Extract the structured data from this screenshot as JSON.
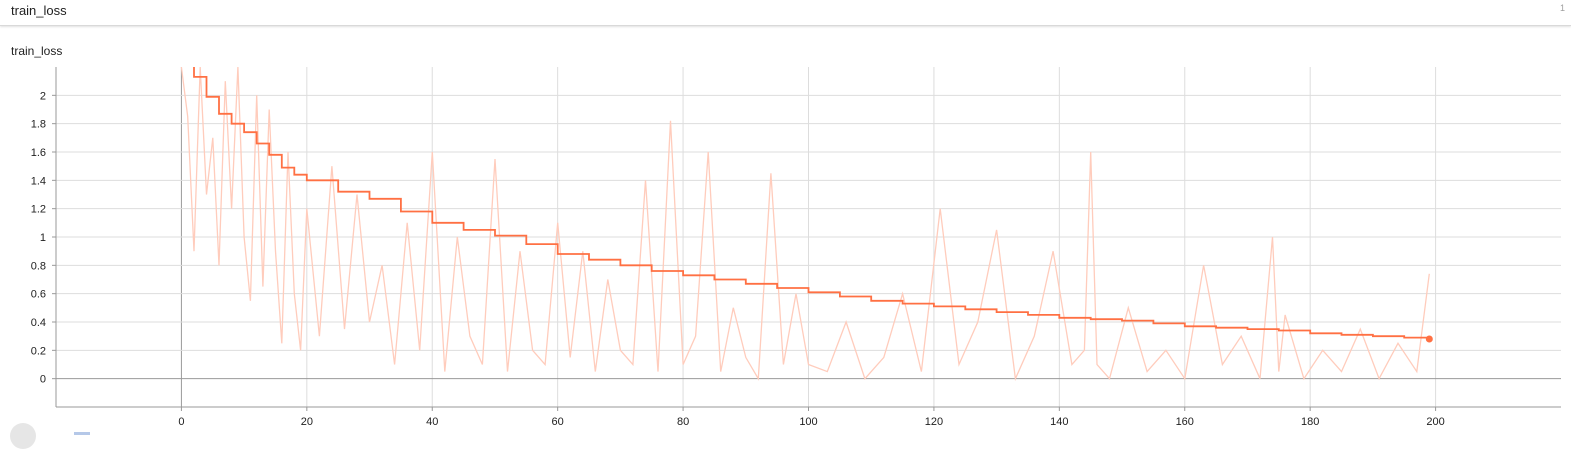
{
  "card": {
    "title": "train_loss",
    "count": "1"
  },
  "chart_data": {
    "type": "line",
    "title": "train_loss",
    "xlabel": "",
    "ylabel": "",
    "xlim": [
      -20,
      220
    ],
    "ylim": [
      -0.2,
      2.2
    ],
    "x_ticks": [
      0,
      20,
      40,
      60,
      80,
      100,
      120,
      140,
      160,
      180,
      200
    ],
    "y_ticks": [
      0,
      0.2,
      0.4,
      0.6,
      0.8,
      1,
      1.2,
      1.4,
      1.6,
      1.8,
      2
    ],
    "grid": true,
    "colors": {
      "smoothed": "#ff7043",
      "raw": "#ffccbc",
      "grid": "#dddddd",
      "axis": "#999999"
    },
    "series": [
      {
        "role": "smoothed",
        "x": [
          0,
          2,
          4,
          6,
          8,
          10,
          12,
          14,
          16,
          18,
          20,
          25,
          30,
          35,
          40,
          45,
          50,
          55,
          60,
          65,
          70,
          75,
          80,
          85,
          90,
          95,
          100,
          105,
          110,
          115,
          120,
          125,
          130,
          135,
          140,
          145,
          150,
          155,
          160,
          165,
          170,
          175,
          180,
          185,
          190,
          195,
          199
        ],
        "values": [
          2.22,
          2.13,
          1.99,
          1.87,
          1.8,
          1.74,
          1.66,
          1.58,
          1.49,
          1.44,
          1.4,
          1.32,
          1.27,
          1.18,
          1.1,
          1.05,
          1.01,
          0.95,
          0.88,
          0.84,
          0.8,
          0.76,
          0.73,
          0.7,
          0.67,
          0.64,
          0.61,
          0.58,
          0.55,
          0.53,
          0.51,
          0.49,
          0.47,
          0.45,
          0.43,
          0.42,
          0.41,
          0.39,
          0.37,
          0.36,
          0.35,
          0.34,
          0.32,
          0.31,
          0.3,
          0.29,
          0.28
        ]
      },
      {
        "role": "raw",
        "x": [
          0,
          1,
          2,
          3,
          4,
          5,
          6,
          7,
          8,
          9,
          10,
          11,
          12,
          13,
          14,
          15,
          16,
          17,
          18,
          19,
          20,
          22,
          24,
          26,
          28,
          30,
          32,
          34,
          36,
          38,
          40,
          42,
          44,
          46,
          48,
          50,
          52,
          54,
          56,
          58,
          60,
          62,
          64,
          66,
          68,
          70,
          72,
          74,
          76,
          78,
          80,
          82,
          84,
          86,
          88,
          90,
          92,
          94,
          96,
          98,
          100,
          103,
          106,
          109,
          112,
          115,
          118,
          121,
          124,
          127,
          130,
          133,
          136,
          139,
          142,
          144,
          145,
          146,
          148,
          151,
          154,
          157,
          160,
          163,
          166,
          169,
          172,
          174,
          175,
          176,
          179,
          182,
          185,
          188,
          191,
          194,
          197,
          199
        ],
        "values": [
          2.2,
          1.85,
          0.9,
          2.2,
          1.3,
          1.7,
          0.8,
          2.1,
          1.2,
          2.2,
          1.0,
          0.55,
          2.0,
          0.65,
          1.9,
          0.9,
          0.25,
          1.6,
          0.6,
          0.2,
          1.2,
          0.3,
          1.5,
          0.35,
          1.3,
          0.4,
          0.8,
          0.1,
          1.1,
          0.2,
          1.6,
          0.05,
          1.0,
          0.3,
          0.1,
          1.55,
          0.05,
          0.9,
          0.2,
          0.1,
          1.1,
          0.15,
          0.9,
          0.05,
          0.7,
          0.2,
          0.1,
          1.4,
          0.05,
          1.82,
          0.1,
          0.3,
          1.6,
          0.05,
          0.5,
          0.15,
          0.0,
          1.45,
          0.1,
          0.6,
          0.1,
          0.05,
          0.4,
          0.0,
          0.15,
          0.6,
          0.05,
          1.2,
          0.1,
          0.4,
          1.05,
          0.0,
          0.3,
          0.9,
          0.1,
          0.2,
          1.6,
          0.1,
          0.0,
          0.5,
          0.05,
          0.2,
          0.0,
          0.8,
          0.1,
          0.3,
          0.0,
          1.0,
          0.05,
          0.45,
          0.0,
          0.2,
          0.05,
          0.35,
          0.0,
          0.25,
          0.05,
          0.74
        ]
      }
    ]
  }
}
